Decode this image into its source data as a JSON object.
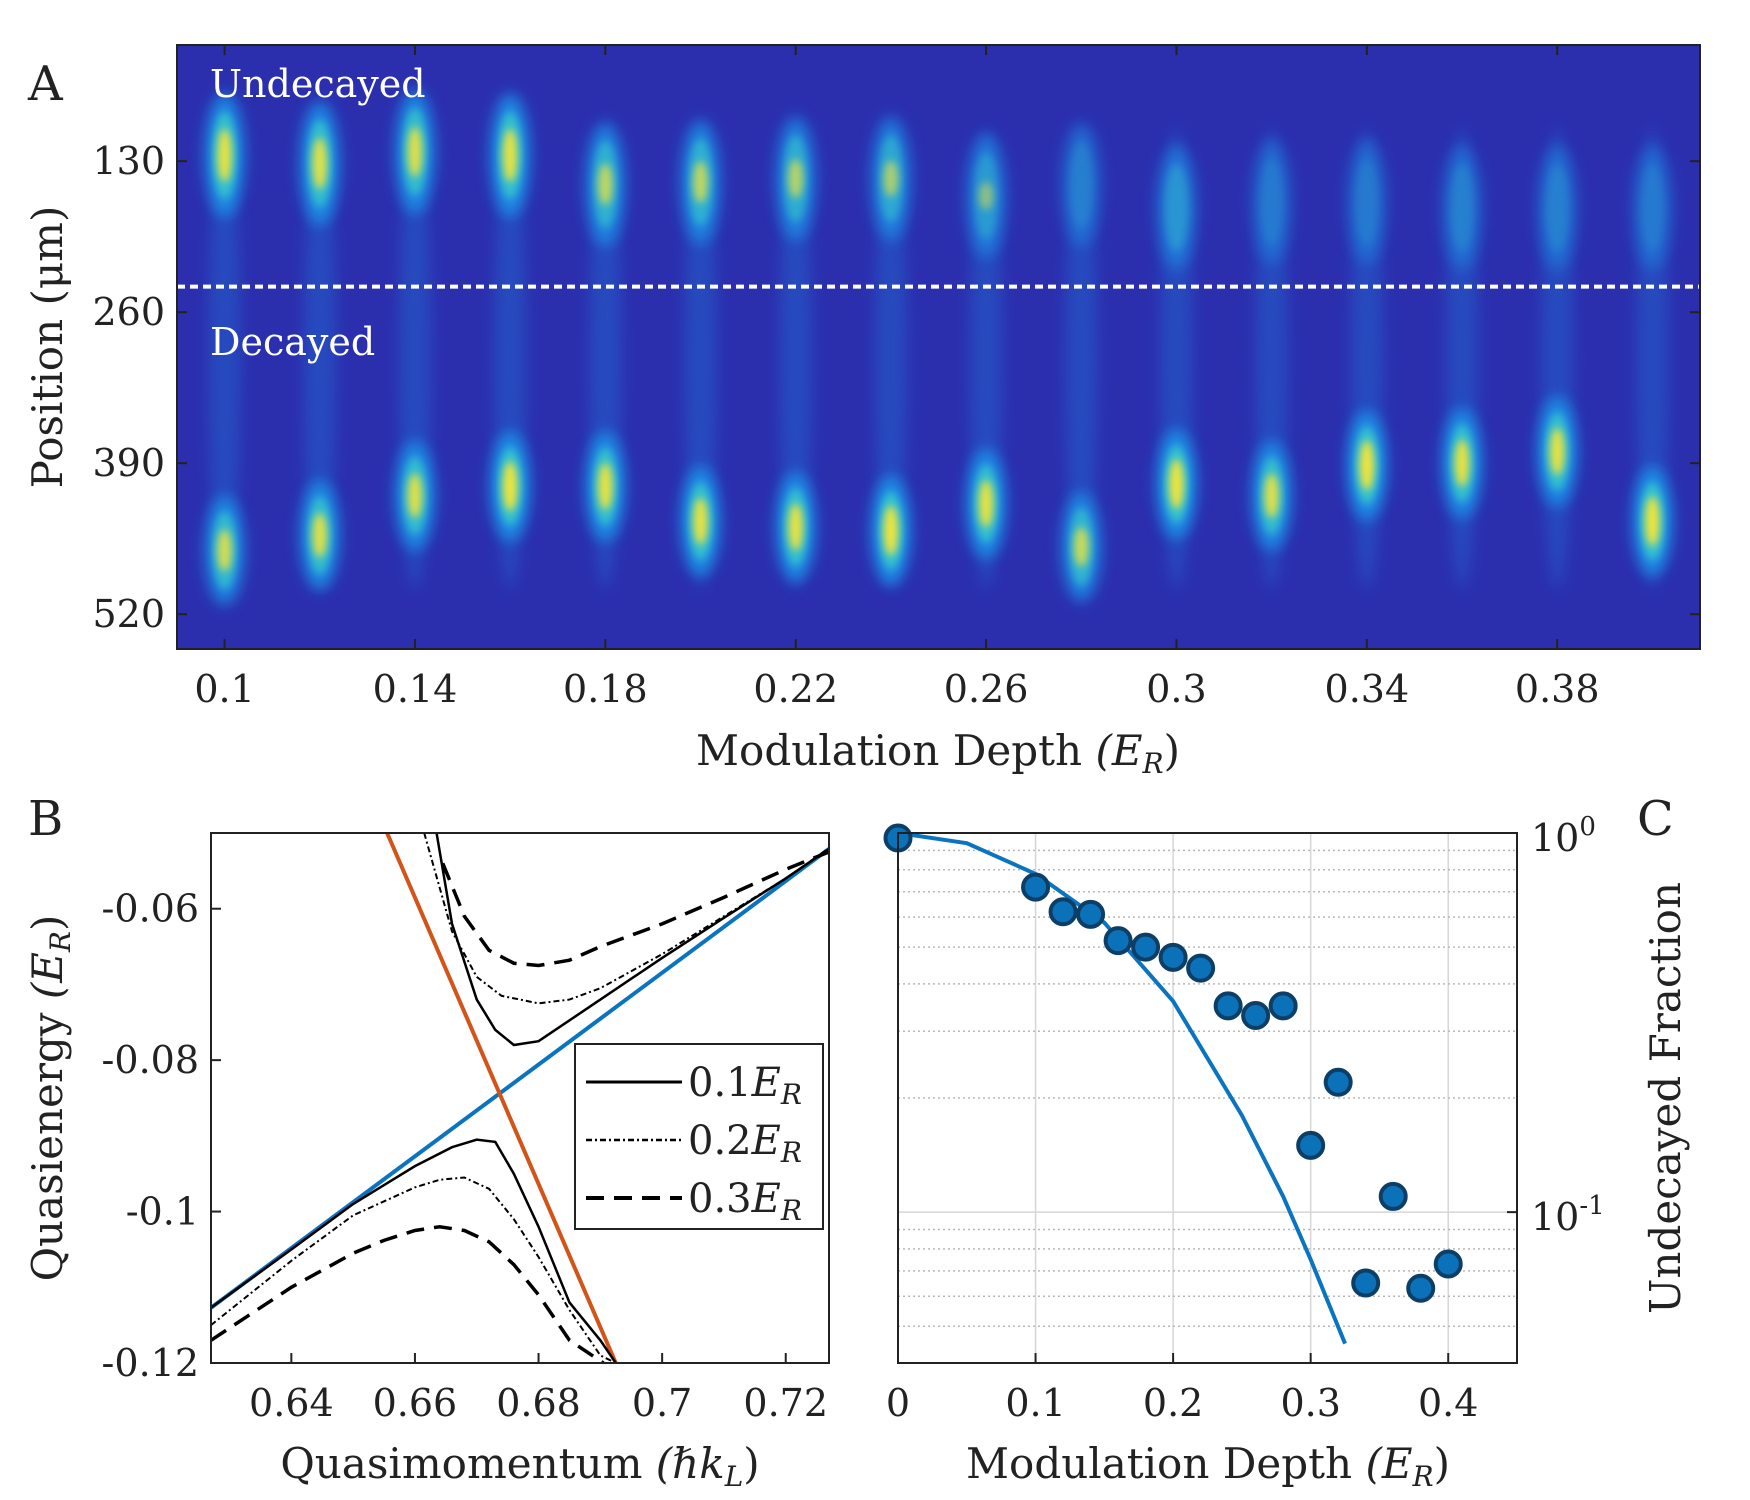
{
  "panel_letters": {
    "a": "A",
    "b": "B",
    "c": "C"
  },
  "colors": {
    "image_background": "#2b2fae",
    "cloud_mid": "#1e90e8",
    "cloud_high": "#f2e43a",
    "blue_line": "#0a74c0",
    "orange_line": "#d35418",
    "marker_fill": "#0b72b9",
    "marker_edge": "#0d3f66",
    "legend_line": "#000000"
  },
  "chart_data": [
    {
      "panel": "A",
      "type": "heatmap",
      "xlabel": "Modulation Depth",
      "xlabel_unit": "(E",
      "xlabel_unit_sub": "R",
      "xlabel_unit_close": ")",
      "ylabel": "Position (μm)",
      "region_labels": {
        "top": "Undecayed",
        "bottom": "Decayed"
      },
      "divider_position_um": 238,
      "x_ticks": [
        0.1,
        0.14,
        0.18,
        0.22,
        0.26,
        0.3,
        0.34,
        0.38
      ],
      "x_tick_labels": [
        "0.1",
        "0.14",
        "0.18",
        "0.22",
        "0.26",
        "0.3",
        "0.34",
        "0.38"
      ],
      "xlim": [
        0.09,
        0.41
      ],
      "y_ticks": [
        130,
        260,
        390,
        520
      ],
      "y_tick_labels": [
        "130",
        "260",
        "390",
        "520"
      ],
      "ylim": [
        30,
        550
      ],
      "y_reversed": true,
      "columns": [
        {
          "x": 0.1,
          "top_center_um": 125,
          "top_amp": 0.95,
          "bottom_center_um": 465,
          "bottom_amp": 0.85
        },
        {
          "x": 0.12,
          "top_center_um": 132,
          "top_amp": 0.92,
          "bottom_center_um": 452,
          "bottom_amp": 0.9
        },
        {
          "x": 0.14,
          "top_center_um": 122,
          "top_amp": 0.9,
          "bottom_center_um": 418,
          "bottom_amp": 0.9
        },
        {
          "x": 0.16,
          "top_center_um": 125,
          "top_amp": 0.95,
          "bottom_center_um": 410,
          "bottom_amp": 1.0
        },
        {
          "x": 0.18,
          "top_center_um": 150,
          "top_amp": 0.75,
          "bottom_center_um": 410,
          "bottom_amp": 0.95
        },
        {
          "x": 0.2,
          "top_center_um": 148,
          "top_amp": 0.75,
          "bottom_center_um": 440,
          "bottom_amp": 0.95
        },
        {
          "x": 0.22,
          "top_center_um": 145,
          "top_amp": 0.7,
          "bottom_center_um": 445,
          "bottom_amp": 0.95
        },
        {
          "x": 0.24,
          "top_center_um": 145,
          "top_amp": 0.65,
          "bottom_center_um": 448,
          "bottom_amp": 1.0
        },
        {
          "x": 0.26,
          "top_center_um": 160,
          "top_amp": 0.5,
          "bottom_center_um": 425,
          "bottom_amp": 0.95
        },
        {
          "x": 0.28,
          "top_center_um": 150,
          "top_amp": 0.25,
          "bottom_center_um": 462,
          "bottom_amp": 0.8
        },
        {
          "x": 0.3,
          "top_center_um": 170,
          "top_amp": 0.45,
          "bottom_center_um": 408,
          "bottom_amp": 1.0
        },
        {
          "x": 0.32,
          "top_center_um": 165,
          "top_amp": 0.2,
          "bottom_center_um": 418,
          "bottom_amp": 0.9
        },
        {
          "x": 0.34,
          "top_center_um": 165,
          "top_amp": 0.2,
          "bottom_center_um": 392,
          "bottom_amp": 1.0
        },
        {
          "x": 0.36,
          "top_center_um": 170,
          "top_amp": 0.25,
          "bottom_center_um": 390,
          "bottom_amp": 0.95
        },
        {
          "x": 0.38,
          "top_center_um": 170,
          "top_amp": 0.25,
          "bottom_center_um": 380,
          "bottom_amp": 0.95
        },
        {
          "x": 0.4,
          "top_center_um": 170,
          "top_amp": 0.2,
          "bottom_center_um": 440,
          "bottom_amp": 1.0
        }
      ]
    },
    {
      "panel": "B",
      "type": "line",
      "xlabel": "Quasimomentum",
      "xlabel_unit": "(ℏk",
      "xlabel_unit_sub": "L",
      "xlabel_unit_close": ")",
      "ylabel": "Quasienergy",
      "ylabel_unit": "(E",
      "ylabel_unit_sub": "R",
      "ylabel_unit_close": ")",
      "xlim": [
        0.627,
        0.727
      ],
      "ylim": [
        -0.12,
        -0.05
      ],
      "x_ticks": [
        0.64,
        0.66,
        0.68,
        0.7,
        0.72
      ],
      "x_tick_labels": [
        "0.64",
        "0.66",
        "0.68",
        "0.7",
        "0.72"
      ],
      "y_ticks": [
        -0.06,
        -0.08,
        -0.1,
        -0.12
      ],
      "y_tick_labels": [
        "-0.06",
        "-0.08",
        "-0.1",
        "-0.12"
      ],
      "legend_placement": "right",
      "legend": [
        {
          "value": "0.1",
          "unit": "E",
          "unit_sub": "R",
          "style": "solid"
        },
        {
          "value": "0.2",
          "unit": "E",
          "unit_sub": "R",
          "style": "dashdot"
        },
        {
          "value": "0.3",
          "unit": "E",
          "unit_sub": "R",
          "style": "dashed"
        }
      ],
      "bare_lines": [
        {
          "color": "#0a74c0",
          "x": [
            0.627,
            0.727
          ],
          "y": [
            -0.1127,
            -0.0521
          ]
        },
        {
          "color": "#d35418",
          "x": [
            0.6555,
            0.6925
          ],
          "y": [
            -0.05,
            -0.12
          ]
        }
      ],
      "series": [
        {
          "style": "solid",
          "upper": {
            "x": [
              0.6635,
              0.666,
              0.67,
              0.673,
              0.676,
              0.68,
              0.69,
              0.7,
              0.71,
              0.72,
              0.727
            ],
            "y": [
              -0.05,
              -0.062,
              -0.072,
              -0.076,
              -0.078,
              -0.0775,
              -0.072,
              -0.0665,
              -0.0612,
              -0.056,
              -0.0521
            ]
          },
          "lower": {
            "x": [
              0.627,
              0.64,
              0.65,
              0.66,
              0.666,
              0.67,
              0.673,
              0.676,
              0.68,
              0.685,
              0.69,
              0.6925
            ],
            "y": [
              -0.1127,
              -0.105,
              -0.099,
              -0.094,
              -0.0915,
              -0.0905,
              -0.0908,
              -0.095,
              -0.102,
              -0.112,
              -0.117,
              -0.12
            ]
          }
        },
        {
          "style": "dashdot",
          "upper": {
            "x": [
              0.6615,
              0.666,
              0.67,
              0.674,
              0.68,
              0.685,
              0.69,
              0.7,
              0.71,
              0.72,
              0.727
            ],
            "y": [
              -0.05,
              -0.063,
              -0.069,
              -0.0715,
              -0.0725,
              -0.072,
              -0.0705,
              -0.066,
              -0.061,
              -0.056,
              -0.052
            ]
          },
          "lower": {
            "x": [
              0.627,
              0.64,
              0.65,
              0.66,
              0.664,
              0.668,
              0.672,
              0.676,
              0.68,
              0.685,
              0.69,
              0.6925
            ],
            "y": [
              -0.115,
              -0.1065,
              -0.1005,
              -0.0968,
              -0.0958,
              -0.0955,
              -0.097,
              -0.101,
              -0.106,
              -0.113,
              -0.119,
              -0.12
            ]
          }
        },
        {
          "style": "dashed",
          "upper": {
            "x": [
              0.6645,
              0.668,
              0.672,
              0.676,
              0.68,
              0.685,
              0.69,
              0.7,
              0.71,
              0.72,
              0.727
            ],
            "y": [
              -0.054,
              -0.061,
              -0.0655,
              -0.0672,
              -0.0675,
              -0.0668,
              -0.065,
              -0.062,
              -0.0585,
              -0.0548,
              -0.0525
            ]
          },
          "lower": {
            "x": [
              0.627,
              0.64,
              0.65,
              0.655,
              0.66,
              0.664,
              0.668,
              0.672,
              0.676,
              0.68,
              0.685,
              0.6905
            ],
            "y": [
              -0.117,
              -0.11,
              -0.1055,
              -0.1038,
              -0.1025,
              -0.102,
              -0.1025,
              -0.104,
              -0.107,
              -0.111,
              -0.117,
              -0.12
            ]
          }
        }
      ]
    },
    {
      "panel": "C",
      "type": "scatter",
      "xlabel": "Modulation Depth",
      "xlabel_unit": "(E",
      "xlabel_unit_sub": "R",
      "xlabel_unit_close": ")",
      "ylabel": "Undecayed Fraction",
      "y_scale": "log",
      "y_axis_side": "right",
      "xlim": [
        0,
        0.45
      ],
      "ylim": [
        0.04,
        1.0
      ],
      "x_ticks": [
        0,
        0.1,
        0.2,
        0.3,
        0.4
      ],
      "x_tick_labels": [
        "0",
        "0.1",
        "0.2",
        "0.3",
        "0.4"
      ],
      "y_ticks": [
        1,
        0.1
      ],
      "y_tick_labels": [
        {
          "base": "10",
          "exp": "0"
        },
        {
          "base": "10",
          "exp": "-1"
        }
      ],
      "grid": true,
      "points": {
        "x": [
          0,
          0.1,
          0.12,
          0.14,
          0.16,
          0.18,
          0.2,
          0.22,
          0.24,
          0.26,
          0.28,
          0.3,
          0.32,
          0.34,
          0.36,
          0.38,
          0.4
        ],
        "y": [
          0.97,
          0.72,
          0.62,
          0.61,
          0.52,
          0.5,
          0.47,
          0.44,
          0.35,
          0.33,
          0.35,
          0.15,
          0.22,
          0.065,
          0.11,
          0.063,
          0.073
        ]
      },
      "fit_curve": {
        "x": [
          0,
          0.05,
          0.1,
          0.15,
          0.2,
          0.25,
          0.28,
          0.3,
          0.325
        ],
        "y": [
          1.0,
          0.94,
          0.78,
          0.58,
          0.36,
          0.18,
          0.11,
          0.075,
          0.045
        ]
      }
    }
  ]
}
